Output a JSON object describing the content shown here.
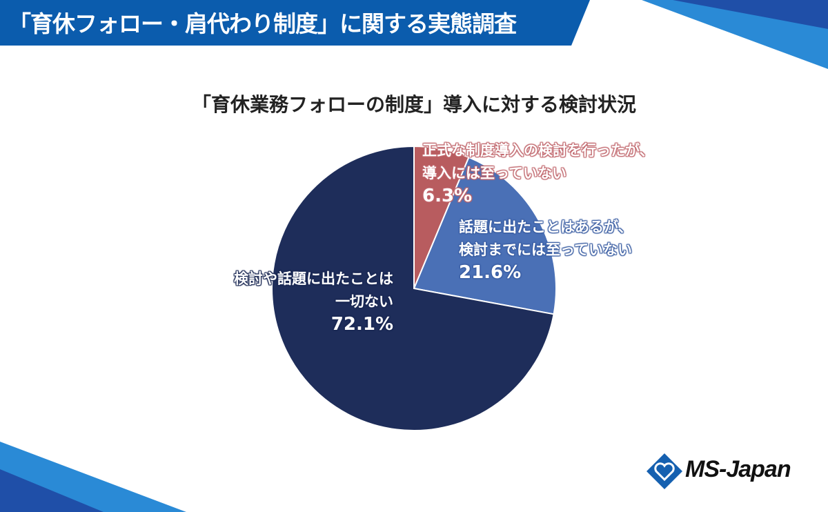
{
  "header": {
    "title": "「育休フォロー・肩代わり制度」に関する実態調査"
  },
  "logo": {
    "text": "MS-Japan"
  },
  "chart_data": {
    "type": "pie",
    "title": "「育休業務フォローの制度」導入に対する検討状況",
    "start": "top",
    "direction": "clockwise",
    "slices": [
      {
        "label_lines": [
          "正式な制度導入の検討を行ったが、",
          "導入には至っていない"
        ],
        "value": 6.3,
        "value_label": "6.3%",
        "color": "#b85c5f"
      },
      {
        "label_lines": [
          "話題に出たことはあるが、",
          "検討までには至っていない"
        ],
        "value": 21.6,
        "value_label": "21.6%",
        "color": "#4a70b6"
      },
      {
        "label_lines": [
          "検討や話題に出たことは",
          "一切ない"
        ],
        "value": 72.1,
        "value_label": "72.1%",
        "color": "#1e2d5a"
      }
    ]
  },
  "colors": {
    "header": "#0b5cad",
    "accent_light": "#2a8ad6"
  }
}
